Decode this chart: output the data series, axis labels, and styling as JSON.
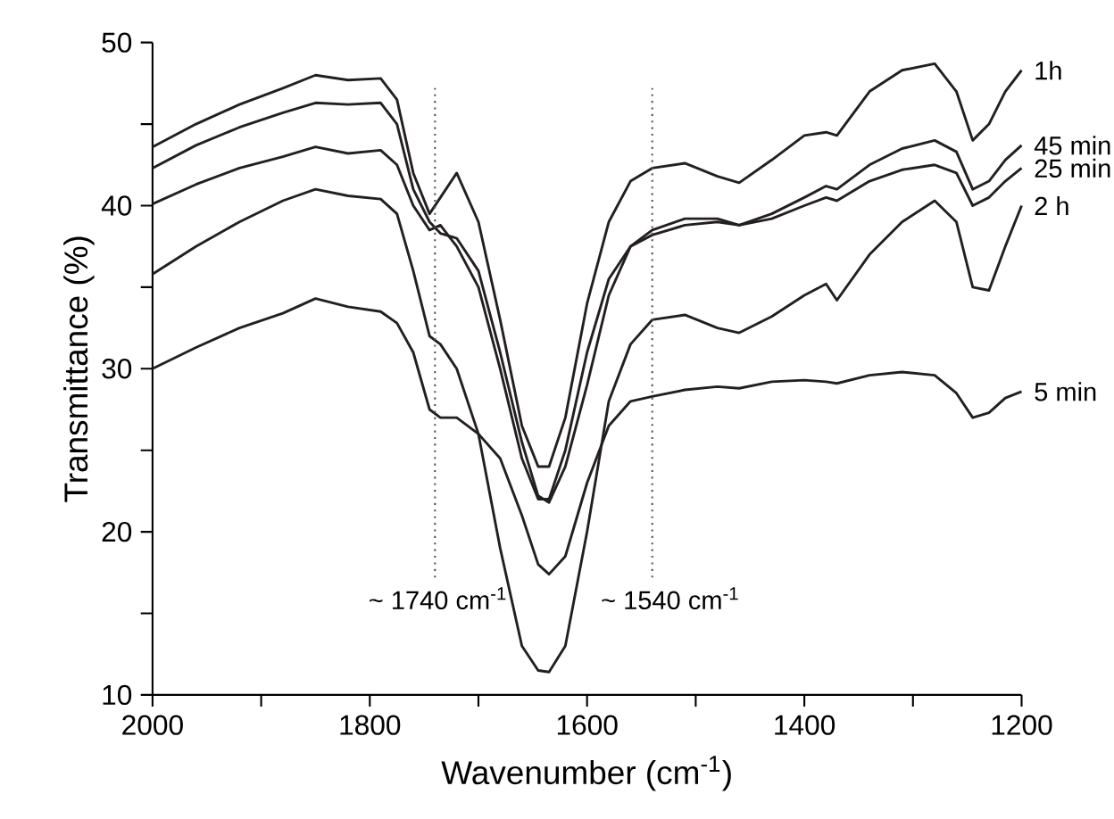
{
  "chart_data": {
    "type": "line",
    "xlabel": "Wavenumber (cm$^{-1}$)",
    "ylabel": "Transmittance (%)",
    "xlim": [
      2000,
      1200
    ],
    "ylim": [
      10,
      50
    ],
    "xticks": [
      2000,
      {
        "value": 1900,
        "label": null
      },
      1800,
      {
        "value": 1700,
        "label": null
      },
      1600,
      {
        "value": 1500,
        "label": null
      },
      1400,
      {
        "value": 1300,
        "label": null
      },
      1200
    ],
    "yticks": [
      10,
      {
        "value": 15,
        "label": null
      },
      20,
      {
        "value": 25,
        "label": null
      },
      30,
      {
        "value": 35,
        "label": null
      },
      40,
      {
        "value": 45,
        "label": null
      },
      50
    ],
    "x": [
      2000,
      1960,
      1920,
      1880,
      1850,
      1820,
      1790,
      1775,
      1760,
      1745,
      1735,
      1720,
      1700,
      1680,
      1660,
      1645,
      1635,
      1620,
      1600,
      1580,
      1560,
      1540,
      1510,
      1480,
      1460,
      1430,
      1400,
      1380,
      1370,
      1340,
      1310,
      1280,
      1260,
      1245,
      1230,
      1215,
      1200
    ],
    "series": [
      {
        "name": "1h",
        "color": "#231f20",
        "values": [
          43.6,
          45.0,
          46.2,
          47.2,
          48.0,
          47.7,
          47.8,
          46.5,
          42,
          39.5,
          40.5,
          42,
          39,
          33,
          26.5,
          24,
          24,
          27,
          34,
          39,
          41.5,
          42.3,
          42.6,
          41.8,
          41.4,
          42.8,
          44.3,
          44.5,
          44.3,
          47,
          48.3,
          48.7,
          47,
          44,
          45,
          47,
          48.3
        ]
      },
      {
        "name": "45 min",
        "color": "#231f20",
        "values": [
          42.3,
          43.7,
          44.8,
          45.7,
          46.3,
          46.2,
          46.3,
          45,
          41,
          39,
          38.3,
          38,
          36,
          31,
          25.5,
          22.2,
          21.8,
          24,
          29,
          34.5,
          37.5,
          38.5,
          39.2,
          39.2,
          38.8,
          39.5,
          40.5,
          41.2,
          41,
          42.5,
          43.5,
          44,
          43.3,
          41,
          41.5,
          42.8,
          43.7
        ]
      },
      {
        "name": "25 min",
        "color": "#231f20",
        "values": [
          40.1,
          41.3,
          42.3,
          43,
          43.6,
          43.2,
          43.4,
          42.5,
          40,
          38.5,
          38.8,
          37.5,
          35,
          30,
          24.5,
          22,
          22,
          25,
          31,
          35.5,
          37.5,
          38.2,
          38.8,
          39,
          38.8,
          39.2,
          40,
          40.5,
          40.3,
          41.5,
          42.2,
          42.5,
          42,
          40,
          40.5,
          41.5,
          42.3
        ]
      },
      {
        "name": "2 h",
        "color": "#231f20",
        "values": [
          35.8,
          37.5,
          39,
          40.3,
          41,
          40.6,
          40.4,
          39.5,
          36,
          32,
          31.5,
          30,
          26,
          19,
          13,
          11.5,
          11.4,
          13,
          20,
          28,
          31.5,
          33,
          33.3,
          32.5,
          32.2,
          33.2,
          34.5,
          35.2,
          34.2,
          37,
          39,
          40.3,
          39,
          35,
          34.8,
          37.5,
          40
        ]
      },
      {
        "name": "5 min",
        "color": "#231f20",
        "values": [
          30,
          31.3,
          32.5,
          33.4,
          34.3,
          33.8,
          33.5,
          32.8,
          31,
          27.5,
          27,
          27,
          26,
          24.5,
          21,
          18,
          17.4,
          18.5,
          23,
          26.5,
          28,
          28.3,
          28.7,
          28.9,
          28.8,
          29.2,
          29.3,
          29.2,
          29.1,
          29.6,
          29.8,
          29.6,
          28.5,
          27,
          27.3,
          28.2,
          28.6
        ]
      }
    ],
    "ref_lines": [
      {
        "axis": "x",
        "value": 1740,
        "label": "~ 1740 cm$^{-1}$",
        "line_style": "dotted",
        "color": "#555555"
      },
      {
        "axis": "x",
        "value": 1540,
        "label": "~ 1540 cm$^{-1}$",
        "line_style": "dotted",
        "color": "#555555"
      }
    ]
  }
}
